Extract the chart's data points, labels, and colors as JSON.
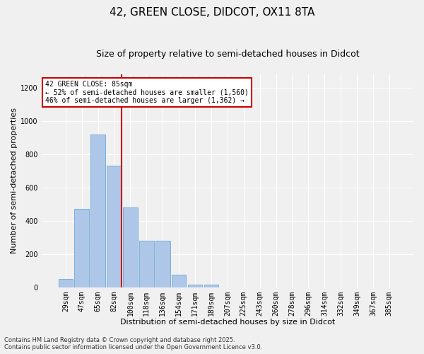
{
  "title": "42, GREEN CLOSE, DIDCOT, OX11 8TA",
  "subtitle": "Size of property relative to semi-detached houses in Didcot",
  "xlabel": "Distribution of semi-detached houses by size in Didcot",
  "ylabel": "Number of semi-detached properties",
  "bin_labels": [
    "29sqm",
    "47sqm",
    "65sqm",
    "82sqm",
    "100sqm",
    "118sqm",
    "136sqm",
    "154sqm",
    "171sqm",
    "189sqm",
    "207sqm",
    "225sqm",
    "243sqm",
    "260sqm",
    "278sqm",
    "296sqm",
    "314sqm",
    "332sqm",
    "349sqm",
    "367sqm",
    "385sqm"
  ],
  "bar_values": [
    50,
    470,
    920,
    730,
    480,
    280,
    280,
    75,
    15,
    15,
    0,
    0,
    0,
    0,
    0,
    0,
    0,
    0,
    0,
    0,
    0
  ],
  "bar_color": "#aec6e8",
  "bar_edgecolor": "#5a9fd4",
  "bar_linewidth": 0.5,
  "red_line_bin": 3,
  "red_line_color": "#cc0000",
  "ylim": [
    0,
    1280
  ],
  "yticks": [
    0,
    200,
    400,
    600,
    800,
    1000,
    1200
  ],
  "annotation_title": "42 GREEN CLOSE: 85sqm",
  "annotation_line1": "← 52% of semi-detached houses are smaller (1,560)",
  "annotation_line2": "46% of semi-detached houses are larger (1,362) →",
  "footnote1": "Contains HM Land Registry data © Crown copyright and database right 2025.",
  "footnote2": "Contains public sector information licensed under the Open Government Licence v3.0.",
  "background_color": "#f0f0f0",
  "plot_bg_color": "#f0f0f0",
  "grid_color": "#ffffff",
  "title_fontsize": 11,
  "subtitle_fontsize": 9,
  "xlabel_fontsize": 8,
  "ylabel_fontsize": 8,
  "tick_fontsize": 7,
  "annot_fontsize": 7,
  "footnote_fontsize": 6
}
